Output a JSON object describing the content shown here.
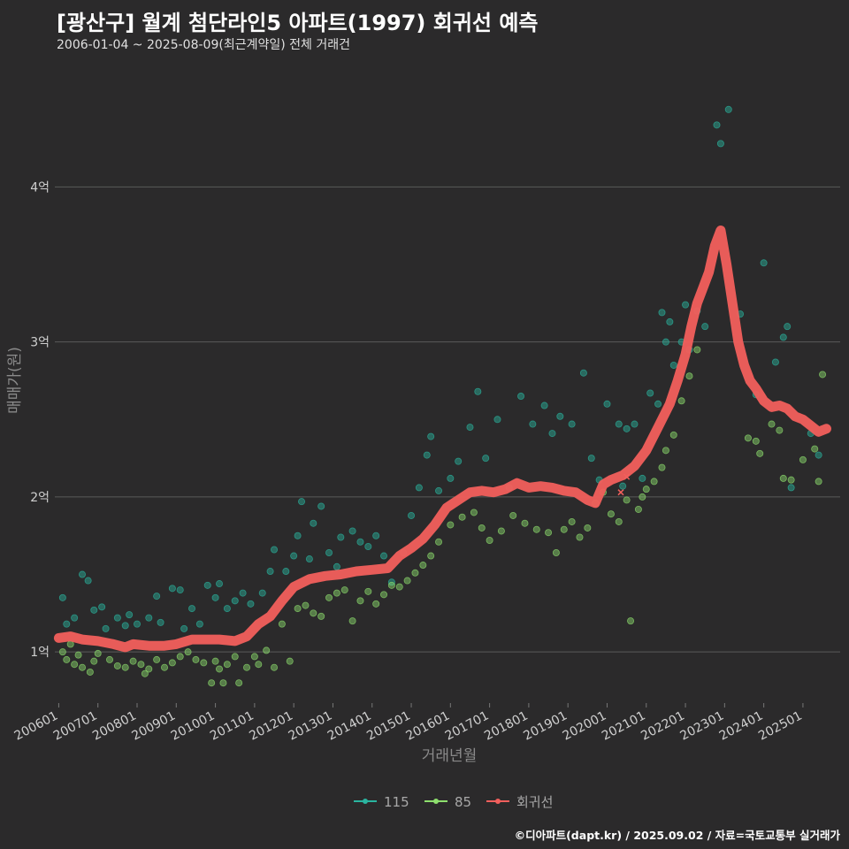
{
  "title": "[광산구] 월계 첨단라인5 아파트(1997) 회귀선 예측",
  "subtitle": "2006-01-04 ~ 2025-08-09(최근계약일) 전체 거래건",
  "footer": "©디아파트(dapt.kr) / 2025.09.02 / 자료=국토교통부 실거래가",
  "colors": {
    "background": "#2b2a2b",
    "s115": "#2ab5a0",
    "s85": "#8ee06e",
    "regression": "#f25f5c",
    "grid": "#5a5a5a",
    "text": "#cfcfcf"
  },
  "chart_data": {
    "type": "scatter",
    "xlabel": "거래년월",
    "ylabel": "매매가(원)",
    "x_unit": "decimal_year",
    "xlim": [
      2005.9,
      2025.95
    ],
    "ylim": [
      0.67,
      4.75
    ],
    "y_ticks": [
      {
        "value": 1,
        "label": "1억"
      },
      {
        "value": 2,
        "label": "2억"
      },
      {
        "value": 3,
        "label": "3억"
      },
      {
        "value": 4,
        "label": "4억"
      }
    ],
    "x_ticks": [
      {
        "value": 2006.0,
        "label": "200601"
      },
      {
        "value": 2007.0,
        "label": "200701"
      },
      {
        "value": 2008.0,
        "label": "200801"
      },
      {
        "value": 2009.0,
        "label": "200901"
      },
      {
        "value": 2010.0,
        "label": "201001"
      },
      {
        "value": 2011.0,
        "label": "201101"
      },
      {
        "value": 2012.0,
        "label": "201201"
      },
      {
        "value": 2013.0,
        "label": "201301"
      },
      {
        "value": 2014.0,
        "label": "201401"
      },
      {
        "value": 2015.0,
        "label": "201501"
      },
      {
        "value": 2016.0,
        "label": "201601"
      },
      {
        "value": 2017.0,
        "label": "201701"
      },
      {
        "value": 2018.0,
        "label": "201801"
      },
      {
        "value": 2019.0,
        "label": "201901"
      },
      {
        "value": 2020.0,
        "label": "202001"
      },
      {
        "value": 2021.0,
        "label": "202101"
      },
      {
        "value": 2022.0,
        "label": "202201"
      },
      {
        "value": 2023.0,
        "label": "202301"
      },
      {
        "value": 2024.0,
        "label": "202401"
      },
      {
        "value": 2025.0,
        "label": "202501"
      }
    ],
    "legend": {
      "position": "bottom",
      "items": [
        "115",
        "85",
        "회귀선"
      ]
    },
    "grid": "horizontal",
    "series": [
      {
        "name": "115",
        "color": "#2ab5a0",
        "points": [
          [
            2006.1,
            1.35
          ],
          [
            2006.2,
            1.18
          ],
          [
            2006.4,
            1.22
          ],
          [
            2006.6,
            1.5
          ],
          [
            2006.75,
            1.46
          ],
          [
            2006.9,
            1.27
          ],
          [
            2007.1,
            1.29
          ],
          [
            2007.2,
            1.15
          ],
          [
            2007.5,
            1.22
          ],
          [
            2007.7,
            1.17
          ],
          [
            2007.8,
            1.24
          ],
          [
            2008.0,
            1.18
          ],
          [
            2008.3,
            1.22
          ],
          [
            2008.5,
            1.36
          ],
          [
            2008.6,
            1.19
          ],
          [
            2008.9,
            1.41
          ],
          [
            2009.1,
            1.4
          ],
          [
            2009.2,
            1.15
          ],
          [
            2009.4,
            1.28
          ],
          [
            2009.6,
            1.18
          ],
          [
            2009.8,
            1.43
          ],
          [
            2010.0,
            1.35
          ],
          [
            2010.1,
            1.44
          ],
          [
            2010.3,
            1.28
          ],
          [
            2010.5,
            1.33
          ],
          [
            2010.7,
            1.38
          ],
          [
            2010.9,
            1.31
          ],
          [
            2011.2,
            1.38
          ],
          [
            2011.4,
            1.52
          ],
          [
            2011.5,
            1.66
          ],
          [
            2011.8,
            1.52
          ],
          [
            2012.0,
            1.62
          ],
          [
            2012.1,
            1.75
          ],
          [
            2012.2,
            1.97
          ],
          [
            2012.4,
            1.6
          ],
          [
            2012.5,
            1.83
          ],
          [
            2012.7,
            1.94
          ],
          [
            2012.9,
            1.64
          ],
          [
            2013.1,
            1.55
          ],
          [
            2013.2,
            1.74
          ],
          [
            2013.5,
            1.78
          ],
          [
            2013.7,
            1.71
          ],
          [
            2013.9,
            1.68
          ],
          [
            2014.1,
            1.75
          ],
          [
            2014.3,
            1.62
          ],
          [
            2014.5,
            1.45
          ],
          [
            2014.8,
            1.64
          ],
          [
            2015.0,
            1.88
          ],
          [
            2015.2,
            2.06
          ],
          [
            2015.4,
            2.27
          ],
          [
            2015.5,
            2.39
          ],
          [
            2015.7,
            2.04
          ],
          [
            2016.0,
            2.12
          ],
          [
            2016.2,
            2.23
          ],
          [
            2016.5,
            2.45
          ],
          [
            2016.7,
            2.68
          ],
          [
            2016.9,
            2.25
          ],
          [
            2017.2,
            2.5
          ],
          [
            2017.5,
            2.06
          ],
          [
            2017.8,
            2.65
          ],
          [
            2018.1,
            2.47
          ],
          [
            2018.4,
            2.59
          ],
          [
            2018.6,
            2.41
          ],
          [
            2018.8,
            2.52
          ],
          [
            2019.1,
            2.47
          ],
          [
            2019.4,
            2.8
          ],
          [
            2019.6,
            2.25
          ],
          [
            2019.8,
            2.11
          ],
          [
            2020.0,
            2.6
          ],
          [
            2020.3,
            2.47
          ],
          [
            2020.4,
            2.07
          ],
          [
            2020.5,
            2.44
          ],
          [
            2020.7,
            2.47
          ],
          [
            2020.9,
            2.12
          ],
          [
            2021.1,
            2.67
          ],
          [
            2021.3,
            2.6
          ],
          [
            2021.4,
            3.19
          ],
          [
            2021.5,
            3.0
          ],
          [
            2021.6,
            3.13
          ],
          [
            2021.7,
            2.85
          ],
          [
            2021.9,
            3.0
          ],
          [
            2022.0,
            3.24
          ],
          [
            2022.1,
            2.95
          ],
          [
            2022.3,
            3.2
          ],
          [
            2022.5,
            3.1
          ],
          [
            2022.8,
            4.4
          ],
          [
            2022.9,
            4.28
          ],
          [
            2023.1,
            4.5
          ],
          [
            2023.4,
            3.18
          ],
          [
            2023.8,
            2.66
          ],
          [
            2024.0,
            3.51
          ],
          [
            2024.3,
            2.87
          ],
          [
            2024.5,
            3.03
          ],
          [
            2024.6,
            3.1
          ],
          [
            2024.7,
            2.06
          ],
          [
            2025.2,
            2.41
          ],
          [
            2025.4,
            2.27
          ]
        ]
      },
      {
        "name": "85",
        "color": "#8ee06e",
        "points": [
          [
            2006.1,
            1.0
          ],
          [
            2006.2,
            0.95
          ],
          [
            2006.3,
            1.05
          ],
          [
            2006.4,
            0.92
          ],
          [
            2006.5,
            0.98
          ],
          [
            2006.6,
            0.9
          ],
          [
            2006.8,
            0.87
          ],
          [
            2006.9,
            0.94
          ],
          [
            2007.0,
            0.99
          ],
          [
            2007.3,
            0.95
          ],
          [
            2007.5,
            0.91
          ],
          [
            2007.7,
            0.9
          ],
          [
            2007.9,
            0.94
          ],
          [
            2008.1,
            0.92
          ],
          [
            2008.2,
            0.86
          ],
          [
            2008.3,
            0.89
          ],
          [
            2008.5,
            0.95
          ],
          [
            2008.7,
            0.9
          ],
          [
            2008.9,
            0.93
          ],
          [
            2009.1,
            0.97
          ],
          [
            2009.3,
            1.0
          ],
          [
            2009.5,
            0.95
          ],
          [
            2009.7,
            0.93
          ],
          [
            2009.9,
            0.8
          ],
          [
            2010.0,
            0.94
          ],
          [
            2010.1,
            0.89
          ],
          [
            2010.2,
            0.8
          ],
          [
            2010.3,
            0.92
          ],
          [
            2010.5,
            0.97
          ],
          [
            2010.6,
            0.8
          ],
          [
            2010.8,
            0.9
          ],
          [
            2011.0,
            0.97
          ],
          [
            2011.1,
            0.92
          ],
          [
            2011.3,
            1.01
          ],
          [
            2011.5,
            0.9
          ],
          [
            2011.7,
            1.18
          ],
          [
            2011.9,
            0.94
          ],
          [
            2012.1,
            1.28
          ],
          [
            2012.3,
            1.3
          ],
          [
            2012.5,
            1.25
          ],
          [
            2012.7,
            1.23
          ],
          [
            2012.9,
            1.35
          ],
          [
            2013.1,
            1.38
          ],
          [
            2013.3,
            1.4
          ],
          [
            2013.5,
            1.2
          ],
          [
            2013.7,
            1.33
          ],
          [
            2013.9,
            1.39
          ],
          [
            2014.1,
            1.31
          ],
          [
            2014.3,
            1.37
          ],
          [
            2014.5,
            1.43
          ],
          [
            2014.7,
            1.42
          ],
          [
            2014.9,
            1.46
          ],
          [
            2015.1,
            1.51
          ],
          [
            2015.3,
            1.56
          ],
          [
            2015.5,
            1.62
          ],
          [
            2015.7,
            1.71
          ],
          [
            2016.0,
            1.82
          ],
          [
            2016.3,
            1.87
          ],
          [
            2016.6,
            1.9
          ],
          [
            2016.8,
            1.8
          ],
          [
            2017.0,
            1.72
          ],
          [
            2017.3,
            1.78
          ],
          [
            2017.6,
            1.88
          ],
          [
            2017.9,
            1.83
          ],
          [
            2018.2,
            1.79
          ],
          [
            2018.5,
            1.77
          ],
          [
            2018.7,
            1.64
          ],
          [
            2018.9,
            1.79
          ],
          [
            2019.1,
            1.84
          ],
          [
            2019.3,
            1.74
          ],
          [
            2019.5,
            1.8
          ],
          [
            2019.7,
            1.96
          ],
          [
            2019.9,
            2.03
          ],
          [
            2020.1,
            1.89
          ],
          [
            2020.3,
            1.84
          ],
          [
            2020.5,
            1.98
          ],
          [
            2020.6,
            1.2
          ],
          [
            2020.8,
            1.92
          ],
          [
            2020.9,
            2.0
          ],
          [
            2021.0,
            2.05
          ],
          [
            2021.2,
            2.1
          ],
          [
            2021.4,
            2.19
          ],
          [
            2021.5,
            2.3
          ],
          [
            2021.7,
            2.4
          ],
          [
            2021.9,
            2.62
          ],
          [
            2022.1,
            2.78
          ],
          [
            2022.3,
            2.95
          ],
          [
            2023.6,
            2.38
          ],
          [
            2023.8,
            2.36
          ],
          [
            2023.9,
            2.28
          ],
          [
            2024.2,
            2.47
          ],
          [
            2024.4,
            2.43
          ],
          [
            2024.5,
            2.12
          ],
          [
            2024.7,
            2.11
          ],
          [
            2025.0,
            2.24
          ],
          [
            2025.3,
            2.31
          ],
          [
            2025.4,
            2.1
          ],
          [
            2025.5,
            2.79
          ]
        ]
      },
      {
        "name": "회귀선",
        "color": "#f25f5c",
        "type": "line",
        "points": [
          [
            2006.0,
            1.09
          ],
          [
            2006.3,
            1.1
          ],
          [
            2006.6,
            1.08
          ],
          [
            2007.0,
            1.07
          ],
          [
            2007.4,
            1.05
          ],
          [
            2007.7,
            1.03
          ],
          [
            2007.9,
            1.05
          ],
          [
            2008.3,
            1.04
          ],
          [
            2008.7,
            1.04
          ],
          [
            2009.0,
            1.05
          ],
          [
            2009.4,
            1.08
          ],
          [
            2009.8,
            1.08
          ],
          [
            2010.1,
            1.08
          ],
          [
            2010.5,
            1.07
          ],
          [
            2010.8,
            1.1
          ],
          [
            2011.1,
            1.18
          ],
          [
            2011.4,
            1.23
          ],
          [
            2011.7,
            1.33
          ],
          [
            2012.0,
            1.42
          ],
          [
            2012.4,
            1.47
          ],
          [
            2012.8,
            1.49
          ],
          [
            2013.2,
            1.5
          ],
          [
            2013.6,
            1.52
          ],
          [
            2014.0,
            1.53
          ],
          [
            2014.4,
            1.54
          ],
          [
            2014.7,
            1.62
          ],
          [
            2015.0,
            1.67
          ],
          [
            2015.3,
            1.73
          ],
          [
            2015.6,
            1.82
          ],
          [
            2015.9,
            1.93
          ],
          [
            2016.2,
            1.98
          ],
          [
            2016.5,
            2.03
          ],
          [
            2016.8,
            2.04
          ],
          [
            2017.1,
            2.03
          ],
          [
            2017.4,
            2.05
          ],
          [
            2017.7,
            2.09
          ],
          [
            2018.0,
            2.06
          ],
          [
            2018.3,
            2.07
          ],
          [
            2018.6,
            2.06
          ],
          [
            2018.9,
            2.04
          ],
          [
            2019.2,
            2.03
          ],
          [
            2019.5,
            1.98
          ],
          [
            2019.7,
            1.96
          ],
          [
            2019.9,
            2.08
          ],
          [
            2020.1,
            2.11
          ],
          [
            2020.4,
            2.14
          ],
          [
            2020.7,
            2.2
          ],
          [
            2021.0,
            2.3
          ],
          [
            2021.3,
            2.45
          ],
          [
            2021.6,
            2.6
          ],
          [
            2021.8,
            2.75
          ],
          [
            2022.0,
            2.92
          ],
          [
            2022.15,
            3.1
          ],
          [
            2022.3,
            3.25
          ],
          [
            2022.45,
            3.35
          ],
          [
            2022.6,
            3.45
          ],
          [
            2022.75,
            3.62
          ],
          [
            2022.9,
            3.72
          ],
          [
            2023.05,
            3.5
          ],
          [
            2023.2,
            3.25
          ],
          [
            2023.35,
            3.0
          ],
          [
            2023.5,
            2.85
          ],
          [
            2023.65,
            2.75
          ],
          [
            2023.8,
            2.7
          ],
          [
            2024.0,
            2.62
          ],
          [
            2024.2,
            2.58
          ],
          [
            2024.4,
            2.59
          ],
          [
            2024.6,
            2.57
          ],
          [
            2024.8,
            2.52
          ],
          [
            2025.0,
            2.5
          ],
          [
            2025.2,
            2.46
          ],
          [
            2025.4,
            2.42
          ],
          [
            2025.6,
            2.44
          ]
        ]
      }
    ],
    "regression_markers": [
      [
        2020.35,
        2.03
      ],
      [
        2020.5,
        2.13
      ]
    ]
  }
}
